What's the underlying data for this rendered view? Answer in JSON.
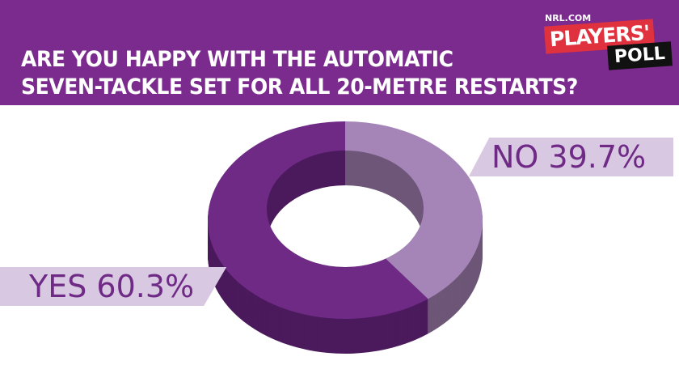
{
  "header": {
    "title_line1": "ARE YOU HAPPY WITH THE AUTOMATIC",
    "title_line2": "SEVEN-TACKLE SET FOR ALL 20-METRE RESTARTS?"
  },
  "logo": {
    "site": "NRL.COM",
    "word1": "PLAYERS'",
    "word2": "POLL"
  },
  "colors": {
    "band": "#7a2b8d",
    "yes": "#6f2a86",
    "no": "#a585b8"
  },
  "chart_data": {
    "type": "pie",
    "style": "3d-donut",
    "title": "ARE YOU HAPPY WITH THE AUTOMATIC SEVEN-TACKLE SET FOR ALL 20-METRE RESTARTS?",
    "categories": [
      "NO",
      "YES"
    ],
    "values": [
      39.7,
      60.3
    ],
    "labels": [
      "NO 39.7%",
      "YES 60.3%"
    ],
    "slice_colors": [
      "#a585b8",
      "#6f2a86"
    ],
    "side_colors": [
      "#6d5677",
      "#4b1a5c"
    ]
  }
}
